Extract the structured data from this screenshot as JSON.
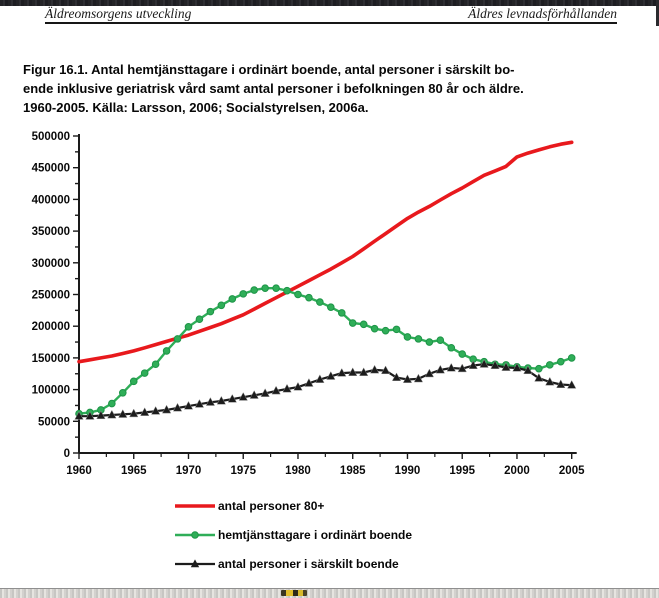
{
  "page": {
    "header_left": "Äldreomsorgens utveckling",
    "header_right": "Äldres levnadsförhållanden",
    "title_lines": [
      "Figur 16.1. Antal hemtjänsttagare i ordinärt boende, antal personer i särskilt bo-",
      "ende inklusive geriatrisk vård samt antal personer i befolkningen 80 år och äldre.",
      "1960-2005. Källa: Larsson, 2006; Socialstyrelsen, 2006a."
    ]
  },
  "chart_data": {
    "type": "line",
    "title": "Figur 16.1. Antal hemtjänsttagare i ordinärt boende, antal personer i särskilt boende inklusive geriatrisk vård samt antal personer i befolkningen 80 år och äldre. 1960-2005. Källa: Larsson, 2006; Socialstyrelsen, 2006a.",
    "xlabel": "",
    "ylabel": "",
    "x_start": 1960,
    "x_step": 1,
    "x_end": 2005,
    "x_ticks": [
      1960,
      1965,
      1970,
      1975,
      1980,
      1985,
      1990,
      1995,
      2000,
      2005
    ],
    "y_ticks": [
      0,
      50000,
      100000,
      150000,
      200000,
      250000,
      300000,
      350000,
      400000,
      450000,
      500000
    ],
    "y_minor_step": 25000,
    "ylim": [
      0,
      500000
    ],
    "grid": false,
    "legend_position": "bottom",
    "axis_color": "#1a1a1a",
    "series": [
      {
        "name": "antal personer 80+",
        "color": "#e8191d",
        "marker": "none",
        "line_width": 3.6,
        "values": [
          144000,
          147000,
          150000,
          153000,
          157000,
          161000,
          166000,
          171000,
          176000,
          181000,
          186000,
          192000,
          198000,
          204000,
          211000,
          218000,
          227000,
          236000,
          245000,
          254000,
          263000,
          272000,
          281000,
          290000,
          300000,
          310000,
          322000,
          334000,
          346000,
          358000,
          370000,
          380000,
          389000,
          399000,
          409000,
          418000,
          428000,
          438000,
          445000,
          452000,
          467000,
          473000,
          478000,
          483000,
          487000,
          490000
        ]
      },
      {
        "name": "hemtjänsttagare i ordinärt boende",
        "color": "#2fae58",
        "marker": "circle",
        "line_width": 2.4,
        "values": [
          62000,
          64000,
          68000,
          78000,
          95000,
          113000,
          126000,
          140000,
          161000,
          180000,
          199000,
          211000,
          223000,
          233000,
          243000,
          251000,
          257000,
          260000,
          260000,
          256000,
          250000,
          245000,
          238000,
          230000,
          221000,
          205000,
          203000,
          196000,
          193000,
          195000,
          183000,
          180000,
          175000,
          178000,
          166000,
          156000,
          148000,
          144000,
          140000,
          139000,
          136000,
          134000,
          133000,
          139000,
          144000,
          150000
        ]
      },
      {
        "name": "antal personer i särskilt boende",
        "color": "#1c1c1c",
        "marker": "triangle",
        "line_width": 2.2,
        "values": [
          58000,
          58000,
          59000,
          60000,
          61000,
          62000,
          64000,
          66000,
          68000,
          71000,
          74000,
          77000,
          80000,
          82000,
          85000,
          88000,
          91000,
          94000,
          98000,
          101000,
          104000,
          110000,
          116000,
          121000,
          126000,
          127000,
          127000,
          131000,
          130000,
          119000,
          116000,
          117000,
          125000,
          131000,
          134000,
          133000,
          138000,
          140000,
          138000,
          135000,
          134000,
          130000,
          118000,
          112000,
          108000,
          107000
        ]
      }
    ]
  }
}
